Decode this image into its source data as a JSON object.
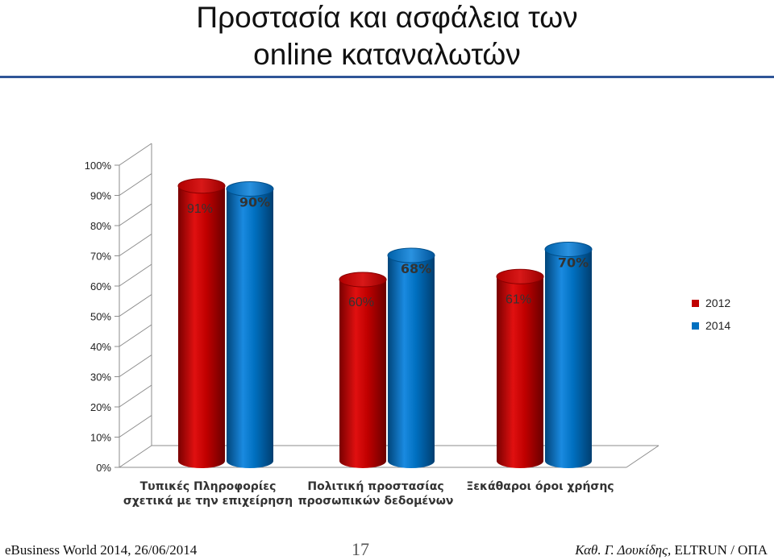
{
  "page": {
    "title_line1": "Προστασία και ασφάλεια των",
    "title_line2": "online καταναλωτών",
    "footer_left": "eBusiness World 2014, 26/06/2014",
    "page_number": "17",
    "footer_author": "Καθ. Γ. Δουκίδης,",
    "footer_org": "ELTRUN / ΟΠΑ"
  },
  "chart_data": {
    "type": "bar",
    "title": "",
    "xlabel": "",
    "ylabel": "",
    "ylim": [
      0,
      100
    ],
    "yticks": [
      0,
      10,
      20,
      30,
      40,
      50,
      60,
      70,
      80,
      90,
      100
    ],
    "ytick_labels": [
      "0%",
      "10%",
      "20%",
      "30%",
      "40%",
      "50%",
      "60%",
      "70%",
      "80%",
      "90%",
      "100%"
    ],
    "grid": true,
    "legend_position": "right",
    "categories": [
      [
        "Τυπικές Πληροφορίες",
        "σχετικά με την επιχείρηση"
      ],
      [
        "Πολιτική προστασίας",
        "προσωπικών δεδομένων"
      ],
      [
        "Ξεκάθαροι όροι χρήσης"
      ]
    ],
    "series": [
      {
        "name": "2012",
        "color": "#c00000",
        "values": [
          91,
          60,
          61
        ],
        "labels": [
          "91%",
          "60%",
          "61%"
        ]
      },
      {
        "name": "2014",
        "color": "#0070c0",
        "values": [
          90,
          68,
          70
        ],
        "labels": [
          "90%",
          "68%",
          "70%"
        ]
      }
    ]
  }
}
